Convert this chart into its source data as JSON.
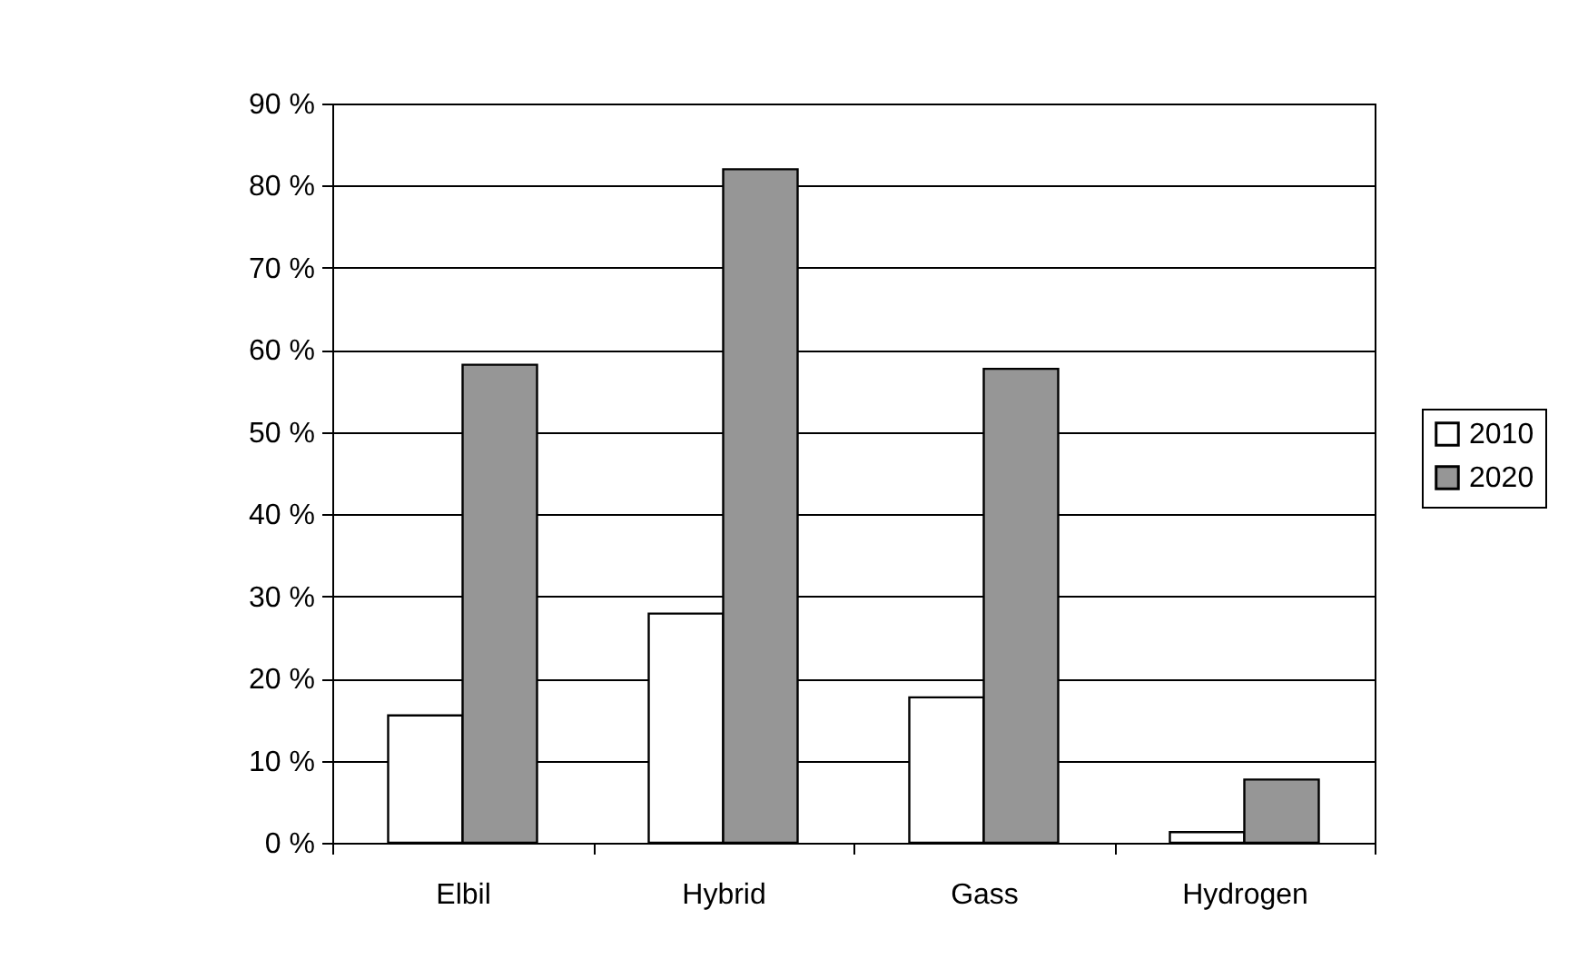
{
  "chart_data": {
    "type": "bar",
    "categories": [
      "Elbil",
      "Hybrid",
      "Gass",
      "Hydrogen"
    ],
    "series": [
      {
        "name": "2010",
        "color": "#ffffff",
        "values": [
          15.5,
          27.9,
          17.7,
          1.3
        ]
      },
      {
        "name": "2020",
        "color": "#969696",
        "values": [
          58.2,
          82,
          57.7,
          7.7
        ]
      }
    ],
    "ylim": [
      0,
      90
    ],
    "yticks": [
      {
        "value": 0,
        "label": "0 %"
      },
      {
        "value": 10,
        "label": "10 %"
      },
      {
        "value": 20,
        "label": "20 %"
      },
      {
        "value": 30,
        "label": "30 %"
      },
      {
        "value": 40,
        "label": "40 %"
      },
      {
        "value": 50,
        "label": "50 %"
      },
      {
        "value": 60,
        "label": "60 %"
      },
      {
        "value": 70,
        "label": "70 %"
      },
      {
        "value": 80,
        "label": "80 %"
      },
      {
        "value": 90,
        "label": "90 %"
      }
    ],
    "grid": "y",
    "legend": "right"
  }
}
